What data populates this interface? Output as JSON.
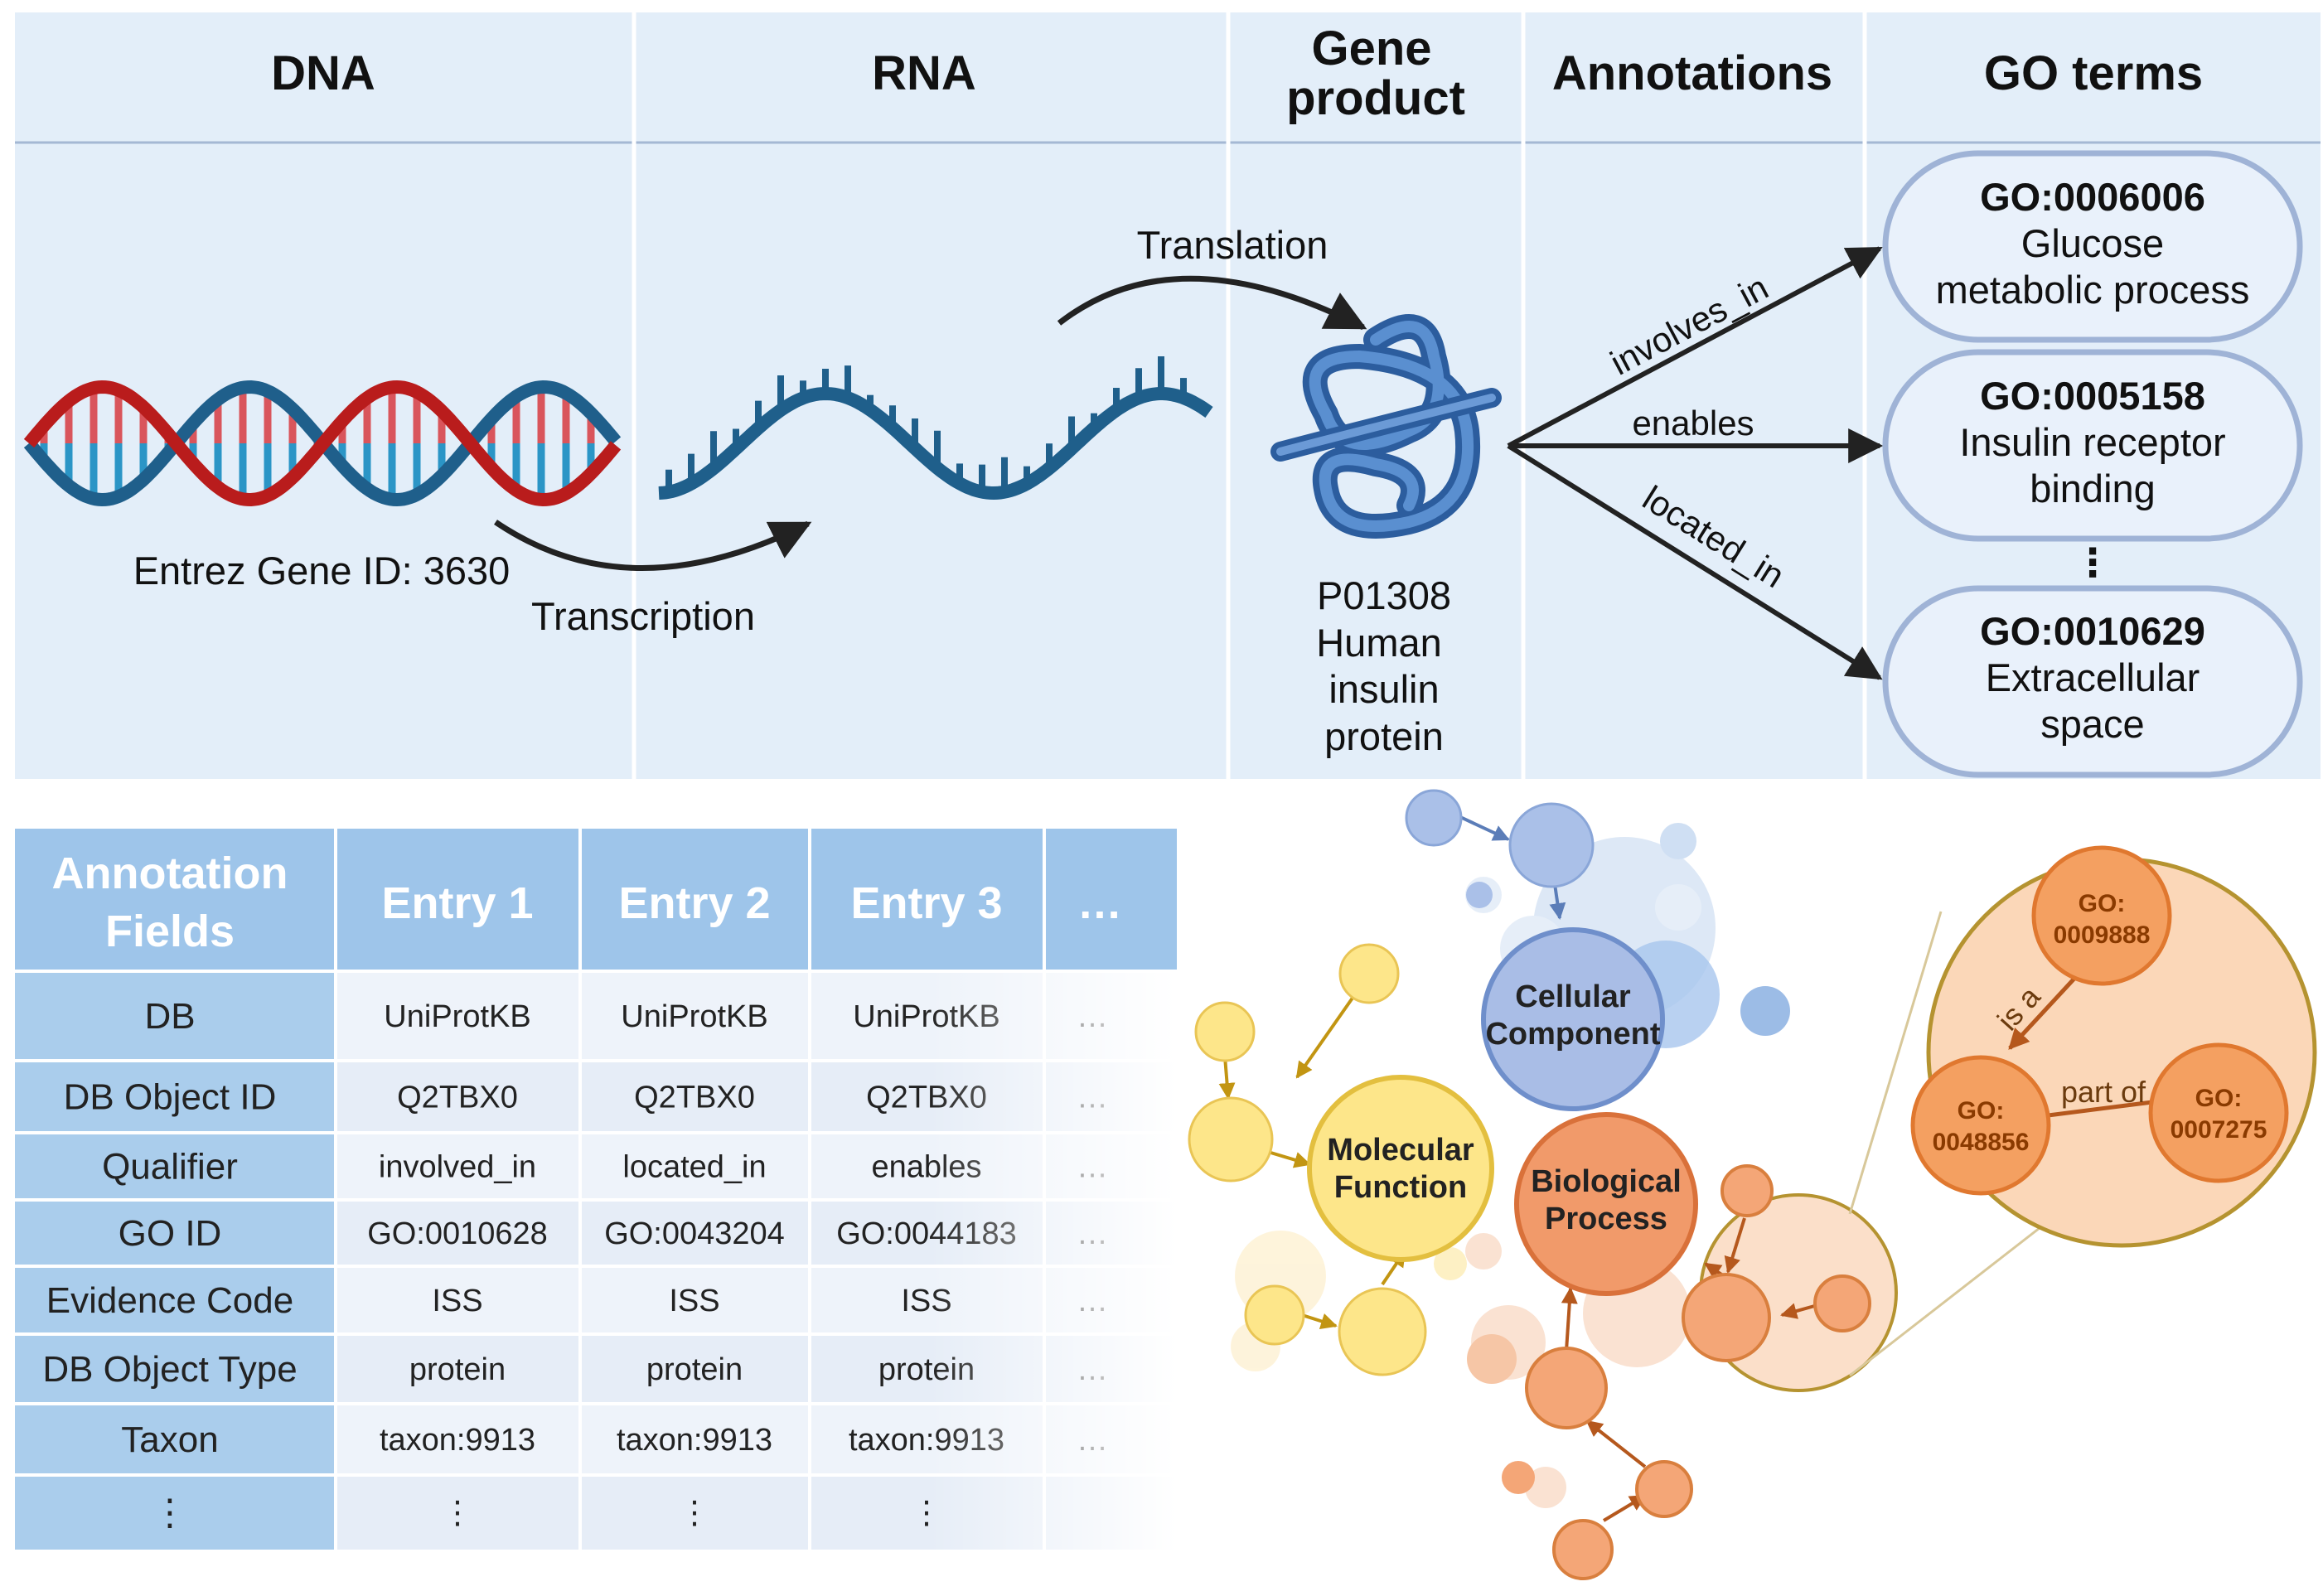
{
  "columns": [
    "DNA",
    "RNA",
    "Gene",
    "product",
    "Annotations",
    "GO terms"
  ],
  "dna_label": "Entrez Gene ID: 3630",
  "steps": {
    "transcription": "Transcription",
    "translation": "Translation"
  },
  "protein": [
    "P01308",
    "Human",
    "insulin",
    "protein"
  ],
  "relations": [
    "involves_in",
    "enables",
    "located_in"
  ],
  "go_terms": [
    {
      "id": "GO:0006006",
      "lines": [
        "Glucose",
        "metabolic process"
      ]
    },
    {
      "id": "GO:0005158",
      "lines": [
        "Insulin receptor",
        "binding"
      ]
    },
    {
      "id": "GO:0010629",
      "lines": [
        "Extracellular",
        "space"
      ]
    }
  ],
  "vdots": "⋮",
  "table": {
    "header": [
      "Annotation",
      "Fields",
      "Entry 1",
      "Entry 2",
      "Entry 3",
      "…"
    ],
    "rows": [
      {
        "field": "DB",
        "cells": [
          "UniProtKB",
          "UniProtKB",
          "UniProtKB",
          "…"
        ]
      },
      {
        "field": "DB Object ID",
        "cells": [
          "Q2TBX0",
          "Q2TBX0",
          "Q2TBX0",
          "…"
        ]
      },
      {
        "field": "Qualifier",
        "cells": [
          "involved_in",
          "located_in",
          "enables",
          "…"
        ]
      },
      {
        "field": "GO ID",
        "cells": [
          "GO:0010628",
          "GO:0043204",
          "GO:0044183",
          "…"
        ]
      },
      {
        "field": "Evidence Code",
        "cells": [
          "ISS",
          "ISS",
          "ISS",
          "…"
        ]
      },
      {
        "field": "DB Object Type",
        "cells": [
          "protein",
          "protein",
          "protein",
          "…"
        ]
      },
      {
        "field": "Taxon",
        "cells": [
          "taxon:9913",
          "taxon:9913",
          "taxon:9913",
          "…"
        ]
      },
      {
        "field": "⋮",
        "cells": [
          "⋮",
          "⋮",
          "⋮",
          ""
        ]
      }
    ]
  },
  "ontology": {
    "cellular": [
      "Cellular",
      "Component"
    ],
    "molecular": [
      "Molecular",
      "Function"
    ],
    "biological": [
      "Biological",
      "Process"
    ],
    "zoom_nodes": [
      "GO:",
      "0009888",
      "GO:",
      "0048856",
      "GO:",
      "0007275"
    ],
    "edges": [
      "is a",
      "part of"
    ]
  },
  "colors": {
    "panel_bg": "#e3eef9",
    "blue_node": "#a8bfe6",
    "yellow_node": "#fde68a",
    "orange_node": "#f0a070",
    "dna_red": "#b91c1c",
    "dna_blue": "#1f5f8b",
    "protein": "#3a6fb0"
  }
}
